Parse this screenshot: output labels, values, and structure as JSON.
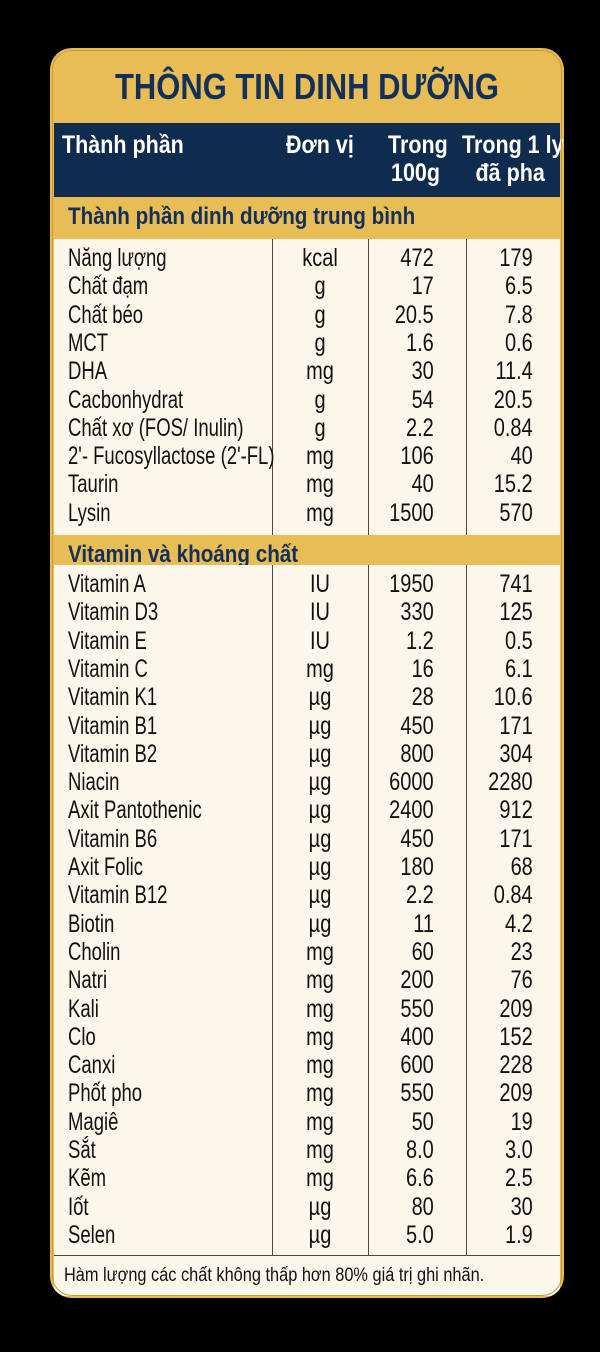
{
  "title": "THÔNG TIN DINH DƯỠNG",
  "header": {
    "col1": "Thành phần",
    "col2": "Đơn vị",
    "col3_line1": "Trong",
    "col3_line2": "100g",
    "col4_line1": "Trong 1 ly",
    "col4_line2": "đã pha"
  },
  "sections": [
    {
      "title": "Thành phần dinh dưỡng trung bình",
      "rows": [
        {
          "name": "Năng lượng",
          "unit": "kcal",
          "per100g": "472",
          "perServing": "179"
        },
        {
          "name": "Chất đạm",
          "unit": "g",
          "per100g": "17",
          "perServing": "6.5"
        },
        {
          "name": "Chất béo",
          "unit": "g",
          "per100g": "20.5",
          "perServing": "7.8"
        },
        {
          "name": "MCT",
          "unit": "g",
          "per100g": "1.6",
          "perServing": "0.6"
        },
        {
          "name": "DHA",
          "unit": "mg",
          "per100g": "30",
          "perServing": "11.4"
        },
        {
          "name": "Cacbonhydrat",
          "unit": "g",
          "per100g": "54",
          "perServing": "20.5"
        },
        {
          "name": "Chất xơ (FOS/ Inulin)",
          "unit": "g",
          "per100g": "2.2",
          "perServing": "0.84"
        },
        {
          "name": "2'- Fucosyllactose (2'-FL)",
          "unit": "mg",
          "per100g": "106",
          "perServing": "40"
        },
        {
          "name": "Taurin",
          "unit": "mg",
          "per100g": "40",
          "perServing": "15.2"
        },
        {
          "name": "Lysin",
          "unit": "mg",
          "per100g": "1500",
          "perServing": "570"
        }
      ]
    },
    {
      "title": "Vitamin và khoáng chất",
      "rows": [
        {
          "name": "Vitamin A",
          "unit": "IU",
          "per100g": "1950",
          "perServing": "741"
        },
        {
          "name": "Vitamin D3",
          "unit": "IU",
          "per100g": "330",
          "perServing": "125"
        },
        {
          "name": "Vitamin E",
          "unit": "IU",
          "per100g": "1.2",
          "perServing": "0.5"
        },
        {
          "name": "Vitamin C",
          "unit": "mg",
          "per100g": "16",
          "perServing": "6.1"
        },
        {
          "name": "Vitamin K1",
          "unit": "µg",
          "per100g": "28",
          "perServing": "10.6"
        },
        {
          "name": "Vitamin B1",
          "unit": "µg",
          "per100g": "450",
          "perServing": "171"
        },
        {
          "name": "Vitamin B2",
          "unit": "µg",
          "per100g": "800",
          "perServing": "304"
        },
        {
          "name": "Niacin",
          "unit": "µg",
          "per100g": "6000",
          "perServing": "2280"
        },
        {
          "name": "Axit Pantothenic",
          "unit": "µg",
          "per100g": "2400",
          "perServing": "912"
        },
        {
          "name": "Vitamin B6",
          "unit": "µg",
          "per100g": "450",
          "perServing": "171"
        },
        {
          "name": "Axit Folic",
          "unit": "µg",
          "per100g": "180",
          "perServing": "68"
        },
        {
          "name": "Vitamin B12",
          "unit": "µg",
          "per100g": "2.2",
          "perServing": "0.84"
        },
        {
          "name": "Biotin",
          "unit": "µg",
          "per100g": "11",
          "perServing": "4.2"
        },
        {
          "name": "Cholin",
          "unit": "mg",
          "per100g": "60",
          "perServing": "23"
        },
        {
          "name": "Natri",
          "unit": "mg",
          "per100g": "200",
          "perServing": "76"
        },
        {
          "name": "Kali",
          "unit": "mg",
          "per100g": "550",
          "perServing": "209"
        },
        {
          "name": "Clo",
          "unit": "mg",
          "per100g": "400",
          "perServing": "152"
        },
        {
          "name": "Canxi",
          "unit": "mg",
          "per100g": "600",
          "perServing": "228"
        },
        {
          "name": "Phốt pho",
          "unit": "mg",
          "per100g": "550",
          "perServing": "209"
        },
        {
          "name": "Magiê",
          "unit": "mg",
          "per100g": "50",
          "perServing": "19"
        },
        {
          "name": "Sắt",
          "unit": "mg",
          "per100g": "8.0",
          "perServing": "3.0"
        },
        {
          "name": "Kẽm",
          "unit": "mg",
          "per100g": "6.6",
          "perServing": "2.5"
        },
        {
          "name": "Iốt",
          "unit": "µg",
          "per100g": "80",
          "perServing": "30"
        },
        {
          "name": "Selen",
          "unit": "µg",
          "per100g": "5.0",
          "perServing": "1.9"
        }
      ]
    }
  ],
  "footnote": "Hàm lượng các chất không thấp hơn 80% giá trị ghi nhãn.",
  "colors": {
    "navy": "#0f2b4d",
    "gold": "#e9bd55",
    "cream": "#fbf7ea",
    "background": "#000000"
  }
}
